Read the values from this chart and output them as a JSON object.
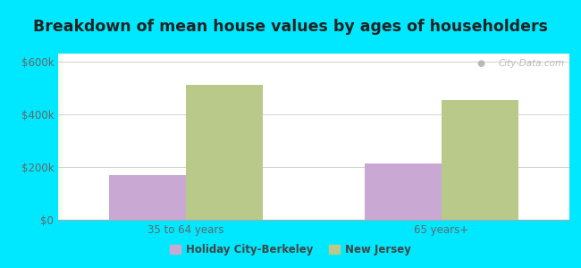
{
  "title": "Breakdown of mean house values by ages of householders",
  "categories": [
    "35 to 64 years",
    "65 years+"
  ],
  "holiday_city_values": [
    170000,
    215000
  ],
  "new_jersey_values": [
    510000,
    455000
  ],
  "holiday_city_color": "#c9a8d4",
  "new_jersey_color": "#b8c98a",
  "yticks": [
    0,
    200000,
    400000,
    600000
  ],
  "ytick_labels": [
    "$0",
    "$200k",
    "$400k",
    "$600k"
  ],
  "ylim": [
    0,
    630000
  ],
  "background_outer": "#00e8ff",
  "legend_labels": [
    "Holiday City-Berkeley",
    "New Jersey"
  ],
  "bar_width": 0.3,
  "watermark": "City-Data.com",
  "title_color": "#222222",
  "tick_color": "#666666"
}
